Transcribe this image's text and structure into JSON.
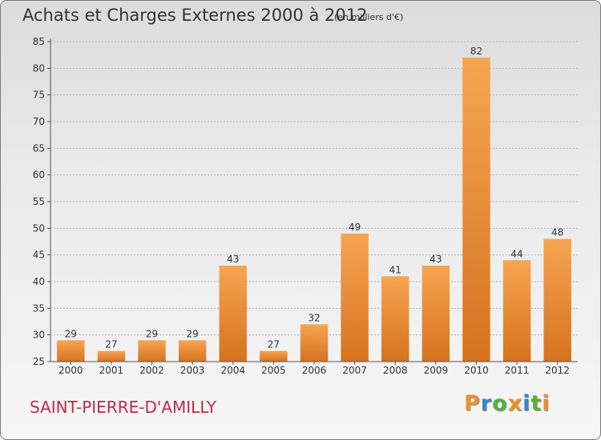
{
  "title": "Achats et Charges Externes 2000 à 2012",
  "subtitle": "(en milliers d'€)",
  "city": "SAINT-PIERRE-D'AMILLY",
  "logo": {
    "letters": [
      "P",
      "r",
      "o",
      "x",
      "i",
      "t",
      "i"
    ],
    "colors": [
      "#e8912c",
      "#3b86c6",
      "#5aae3a",
      "#e8912c",
      "#3b86c6",
      "#5aae3a",
      "#e8912c"
    ]
  },
  "colors": {
    "bar_top": "#f7a552",
    "bar_bottom": "#d6721f",
    "grid": "#b5b5b5",
    "axis": "#555555",
    "text": "#333333"
  },
  "chart_data": {
    "type": "bar",
    "title": "Achats et Charges Externes 2000 à 2012",
    "subtitle": "(en milliers d'€)",
    "categories": [
      "2000",
      "2001",
      "2002",
      "2003",
      "2004",
      "2005",
      "2006",
      "2007",
      "2008",
      "2009",
      "2010",
      "2011",
      "2012"
    ],
    "values": [
      29,
      27,
      29,
      29,
      43,
      27,
      32,
      49,
      41,
      43,
      82,
      44,
      48
    ],
    "data_labels": [
      "29",
      "27",
      "29",
      "29",
      "43",
      "27",
      "32",
      "49",
      "41",
      "43",
      "82",
      "44",
      "48"
    ],
    "ylim": [
      25,
      85
    ],
    "yticks": [
      25,
      30,
      35,
      40,
      45,
      50,
      55,
      60,
      65,
      70,
      75,
      80,
      85
    ],
    "ytick_labels": [
      "25",
      "30",
      "35",
      "40",
      "45",
      "50",
      "55",
      "60",
      "65",
      "70",
      "75",
      "80",
      "85"
    ],
    "grid": true,
    "legend": "none"
  }
}
